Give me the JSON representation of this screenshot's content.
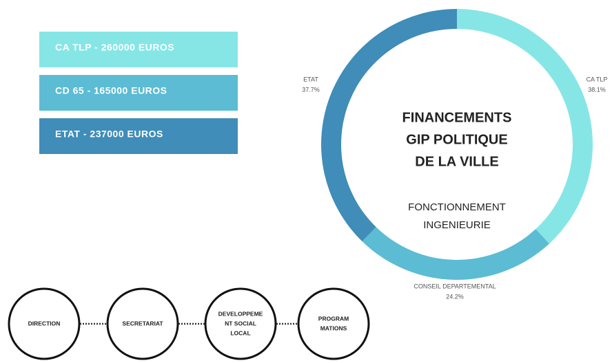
{
  "chart_data": {
    "type": "donut",
    "categories": [
      "CA TLP",
      "CONSEIL DEPARTEMENTAL",
      "ETAT"
    ],
    "values": [
      38.1,
      24.2,
      37.7
    ],
    "value_labels": [
      "38.1%",
      "24.2%",
      "37.7%"
    ],
    "colors": [
      "#86e6e6",
      "#5bbcd4",
      "#3f8db8"
    ],
    "title": [
      "FINANCEMENTS",
      "GIP POLITIQUE",
      "DE LA VILLE"
    ],
    "subtitle": [
      "FONCTIONNEMENT",
      "INGENIEURIE"
    ]
  },
  "boxes": [
    "CA TLP - 260000 EUROS",
    "CD 65 - 165000 EUROS",
    "ETAT - 237000 EUROS"
  ],
  "nodes": [
    [
      "DIRECTION"
    ],
    [
      "SECRETARIAT"
    ],
    [
      "DEVELOPPEME",
      "NT SOCIAL",
      "LOCAL"
    ],
    [
      "PROGRAM",
      "MATIONS"
    ]
  ]
}
